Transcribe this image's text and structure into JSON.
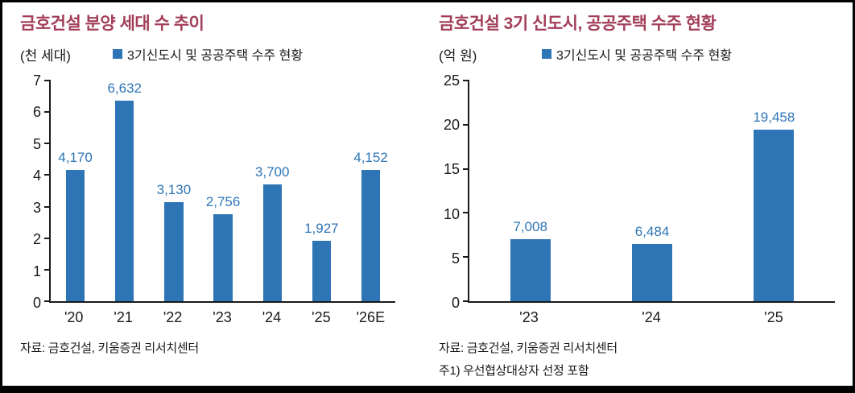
{
  "page": {
    "background": "#ffffff",
    "title_color": "#a23e5a",
    "bar_color": "#2e75b6",
    "value_label_color": "#2e75b6"
  },
  "chart_data": [
    {
      "type": "bar",
      "title": "금호건설 분양 세대 수 추이",
      "unit_label": "(천 세대)",
      "legend": "3기신도시 및 공공주택 수주 현황",
      "categories": [
        "'20",
        "'21",
        "'22",
        "'23",
        "'24",
        "'25",
        "'26E"
      ],
      "values": [
        4.17,
        6.632,
        3.13,
        2.756,
        3.7,
        1.927,
        4.152
      ],
      "value_labels": [
        "4,170",
        "6,632",
        "3,130",
        "2,756",
        "3,700",
        "1,927",
        "4,152"
      ],
      "ylim": [
        0,
        7
      ],
      "yticks": [
        0,
        1,
        2,
        3,
        4,
        5,
        6,
        7
      ],
      "grid": false,
      "legend_position": "top-center",
      "source": "자료: 금호건설, 키움증권 리서치센터"
    },
    {
      "type": "bar",
      "title": "금호건설 3기 신도시, 공공주택 수주 현황",
      "unit_label": "(억 원)",
      "legend": "3기신도시 및 공공주택 수주 현황",
      "categories": [
        "'23",
        "'24",
        "'25"
      ],
      "values": [
        7.008,
        6.484,
        19.458
      ],
      "value_labels": [
        "7,008",
        "6,484",
        "19,458"
      ],
      "ylim": [
        0,
        25
      ],
      "yticks": [
        0,
        5,
        10,
        15,
        20,
        25
      ],
      "grid": false,
      "legend_position": "top-center",
      "source": "자료: 금호건설, 키움증권 리서치센터",
      "note": "주1) 우선협상대상자 선정 포함"
    }
  ]
}
